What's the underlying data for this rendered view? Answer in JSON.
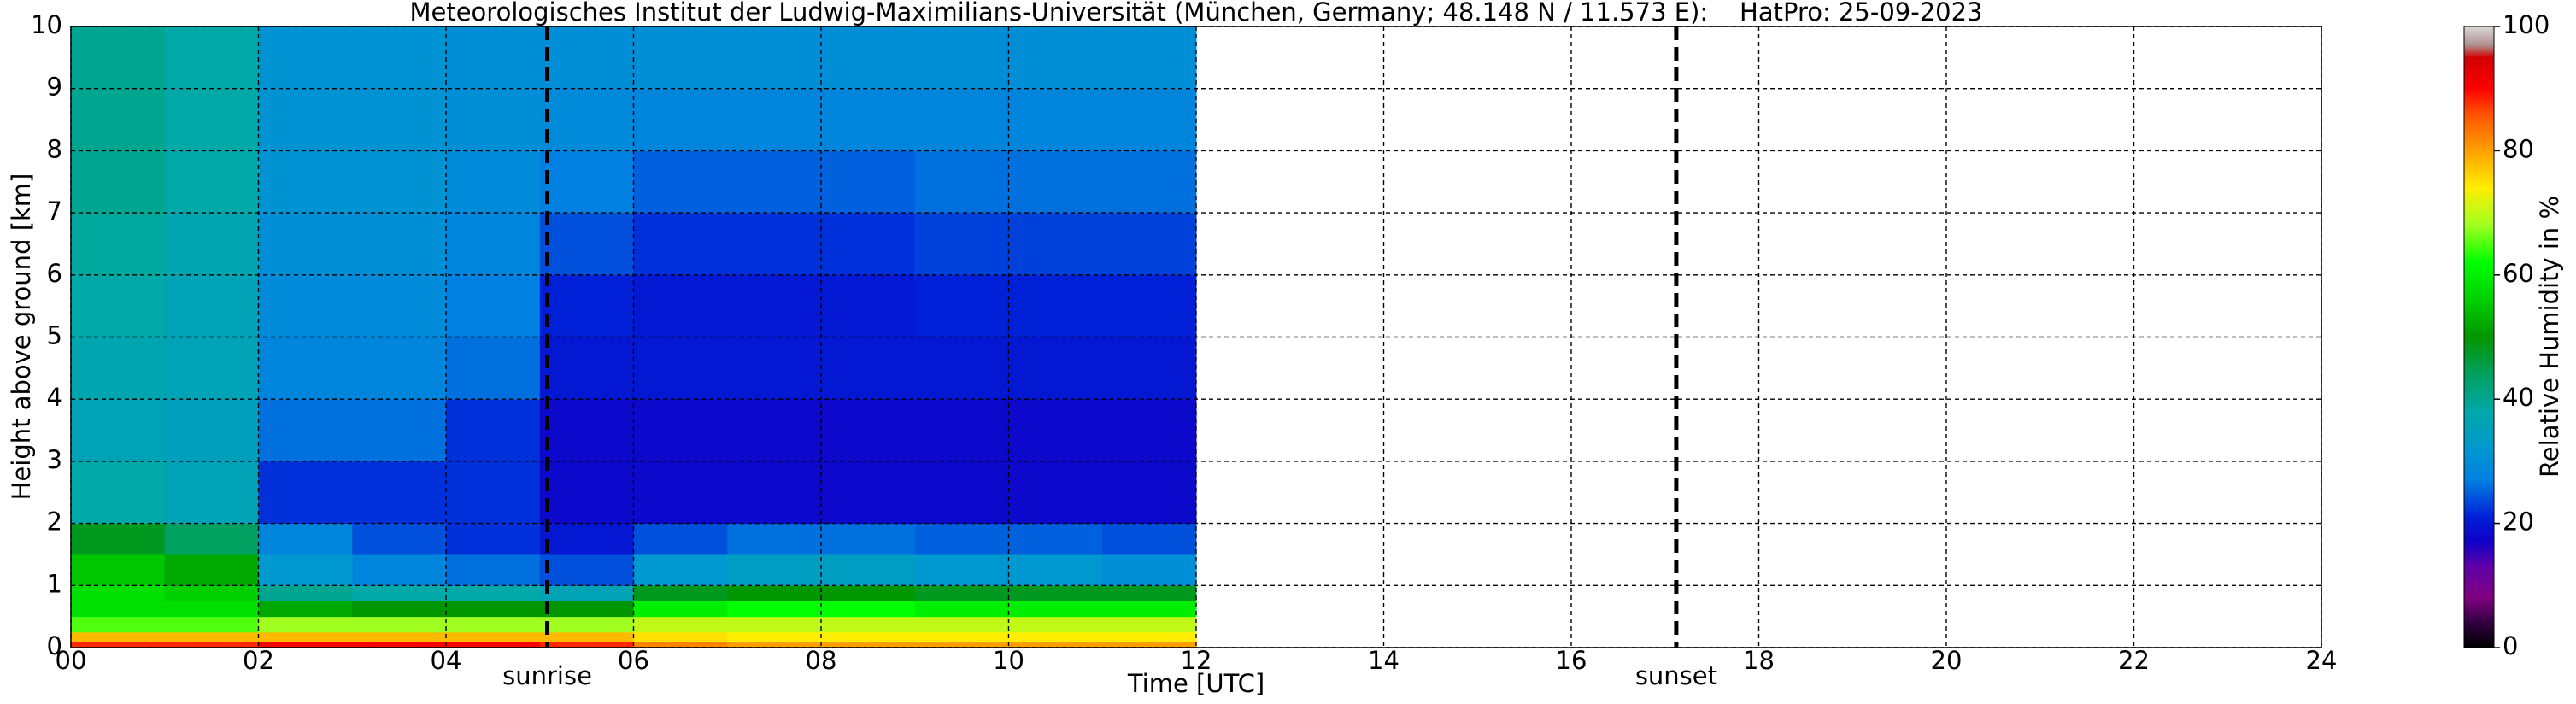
{
  "chart_data": {
    "type": "heatmap",
    "title": "Meteorologisches Institut der Ludwig-Maximilians-Universität (München, Germany; 48.148 N / 11.573 E):    HatPro: 25-09-2023",
    "xlabel": "Time [UTC]",
    "ylabel": "Height above ground [km]",
    "x_bins": [
      0,
      1,
      2,
      3,
      4,
      5,
      6,
      7,
      8,
      9,
      10,
      11,
      12
    ],
    "y_bins": [
      0,
      0.1,
      0.25,
      0.5,
      0.75,
      1,
      1.5,
      2,
      3,
      4,
      5,
      6,
      7,
      8,
      9,
      10
    ],
    "values": [
      [
        88,
        88,
        90,
        90,
        90,
        88,
        82,
        80,
        80,
        80,
        80,
        80
      ],
      [
        78,
        78,
        78,
        78,
        78,
        78,
        75,
        74,
        74,
        74,
        74,
        74
      ],
      [
        65,
        65,
        68,
        68,
        68,
        68,
        70,
        70,
        70,
        70,
        70,
        70
      ],
      [
        58,
        58,
        52,
        50,
        50,
        50,
        60,
        62,
        62,
        60,
        60,
        60
      ],
      [
        58,
        56,
        40,
        38,
        38,
        36,
        48,
        50,
        50,
        48,
        48,
        48
      ],
      [
        55,
        52,
        32,
        28,
        26,
        24,
        32,
        34,
        34,
        32,
        32,
        30
      ],
      [
        48,
        44,
        28,
        24,
        22,
        20,
        24,
        26,
        26,
        25,
        25,
        24
      ],
      [
        38,
        36,
        22,
        22,
        22,
        18,
        18,
        18,
        18,
        18,
        18,
        18
      ],
      [
        36,
        35,
        26,
        26,
        22,
        18,
        18,
        18,
        18,
        18,
        18,
        18
      ],
      [
        37,
        36,
        28,
        28,
        26,
        20,
        20,
        20,
        20,
        20,
        20,
        20
      ],
      [
        38,
        36,
        29,
        29,
        27,
        21,
        20,
        20,
        20,
        21,
        21,
        21
      ],
      [
        39,
        37,
        30,
        30,
        28,
        24,
        22,
        22,
        22,
        23,
        23,
        23
      ],
      [
        40,
        38,
        31,
        31,
        29,
        27,
        25,
        25,
        25,
        26,
        26,
        26
      ],
      [
        40,
        38,
        31,
        31,
        30,
        29,
        28,
        28,
        28,
        28,
        28,
        28
      ],
      [
        40,
        38,
        31,
        31,
        30,
        30,
        30,
        30,
        30,
        30,
        30,
        30
      ]
    ],
    "xlim": [
      0,
      24
    ],
    "ylim": [
      0,
      10
    ],
    "xticks": [
      {
        "value": 0,
        "label": "00"
      },
      {
        "value": 2,
        "label": "02"
      },
      {
        "value": 4,
        "label": "04"
      },
      {
        "value": 6,
        "label": "06"
      },
      {
        "value": 8,
        "label": "08"
      },
      10,
      12,
      14,
      16,
      18,
      20,
      22,
      24
    ],
    "yticks": [
      0,
      1,
      2,
      3,
      4,
      5,
      6,
      7,
      8,
      9,
      10
    ],
    "grid": true,
    "colorscale": [
      {
        "value": 0,
        "color": "#000000"
      },
      {
        "value": 4,
        "color": "#300040"
      },
      {
        "value": 8,
        "color": "#800080"
      },
      {
        "value": 13,
        "color": "#6000a8"
      },
      {
        "value": 17,
        "color": "#1000c8"
      },
      {
        "value": 21,
        "color": "#0020d8"
      },
      {
        "value": 27,
        "color": "#0080e0"
      },
      {
        "value": 32,
        "color": "#0098d0"
      },
      {
        "value": 38,
        "color": "#00a8a8"
      },
      {
        "value": 44,
        "color": "#00a060"
      },
      {
        "value": 50,
        "color": "#009600"
      },
      {
        "value": 56,
        "color": "#00d000"
      },
      {
        "value": 62,
        "color": "#00ff00"
      },
      {
        "value": 68,
        "color": "#a0ff20"
      },
      {
        "value": 74,
        "color": "#ffee00"
      },
      {
        "value": 80,
        "color": "#ffa000"
      },
      {
        "value": 86,
        "color": "#ff5000"
      },
      {
        "value": 90,
        "color": "#ff0000"
      },
      {
        "value": 95,
        "color": "#d00000"
      },
      {
        "value": 97,
        "color": "#b09090"
      },
      {
        "value": 100,
        "color": "#d8d8d8"
      }
    ],
    "colorbar": {
      "label": "Relative Humidity in %",
      "lim": [
        0,
        100
      ],
      "ticks": [
        0,
        20,
        40,
        60,
        80,
        100
      ]
    },
    "annotations": [
      {
        "x": 5.08,
        "label": "sunrise"
      },
      {
        "x": 17.12,
        "label": "sunset"
      }
    ]
  }
}
